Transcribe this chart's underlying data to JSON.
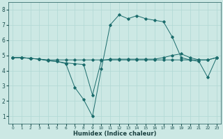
{
  "xlabel": "Humidex (Indice chaleur)",
  "ylabel": "",
  "bg_color": "#cce8e4",
  "line_color": "#1a6b6b",
  "grid_color": "#b0d8d4",
  "xlim": [
    -0.5,
    23.5
  ],
  "ylim": [
    0.5,
    8.5
  ],
  "xticks": [
    0,
    1,
    2,
    3,
    4,
    5,
    6,
    7,
    8,
    9,
    10,
    11,
    12,
    13,
    14,
    15,
    16,
    17,
    18,
    19,
    20,
    21,
    22,
    23
  ],
  "yticks": [
    1,
    2,
    3,
    4,
    5,
    6,
    7,
    8
  ],
  "line1_x": [
    0,
    1,
    2,
    3,
    4,
    5,
    6,
    7,
    8,
    9,
    10,
    11,
    12,
    13,
    14,
    15,
    16,
    17,
    18,
    19,
    20,
    21,
    22,
    23
  ],
  "line1_y": [
    4.85,
    4.85,
    4.8,
    4.75,
    4.7,
    4.7,
    4.7,
    4.7,
    4.7,
    4.7,
    4.7,
    4.7,
    4.7,
    4.7,
    4.7,
    4.7,
    4.7,
    4.7,
    4.7,
    4.7,
    4.7,
    4.7,
    4.7,
    4.85
  ],
  "line2_x": [
    0,
    1,
    2,
    3,
    4,
    5,
    6,
    7,
    8,
    9,
    10,
    11,
    12,
    13,
    14,
    15,
    16,
    17,
    18,
    19,
    20,
    21,
    22,
    23
  ],
  "line2_y": [
    4.85,
    4.85,
    4.8,
    4.75,
    4.65,
    4.6,
    4.45,
    2.9,
    2.1,
    1.0,
    4.1,
    7.0,
    7.65,
    7.4,
    7.6,
    7.4,
    7.3,
    7.2,
    6.2,
    4.85,
    4.7,
    4.6,
    3.55,
    4.85
  ],
  "line3_x": [
    0,
    1,
    2,
    3,
    4,
    5,
    6,
    7,
    8,
    9,
    10,
    11,
    12,
    13,
    14,
    15,
    16,
    17,
    18,
    19,
    20,
    21,
    22,
    23
  ],
  "line3_y": [
    4.85,
    4.85,
    4.8,
    4.75,
    4.65,
    4.6,
    4.5,
    4.45,
    4.4,
    2.4,
    4.65,
    4.75,
    4.75,
    4.75,
    4.75,
    4.75,
    4.75,
    4.85,
    5.0,
    5.1,
    4.85,
    4.7,
    4.7,
    4.85
  ],
  "marker": "D",
  "markersize": 1.8,
  "linewidth": 0.7
}
